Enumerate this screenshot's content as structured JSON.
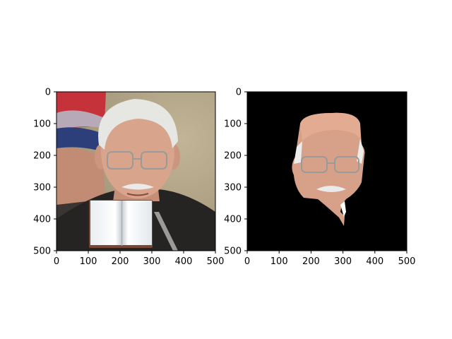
{
  "chart_data": [
    {
      "type": "image",
      "panel": "left",
      "content": "photo of an elderly man with glasses; an open book is pasted over the lower middle",
      "xlim": [
        0,
        500
      ],
      "ylim": [
        500,
        0
      ],
      "xticks": [
        "0",
        "100",
        "200",
        "300",
        "400",
        "500"
      ],
      "yticks": [
        "0",
        "100",
        "200",
        "300",
        "400",
        "500"
      ],
      "occluder": {
        "kind": "open-book",
        "x": [
          105,
          300
        ],
        "y": [
          340,
          490
        ]
      }
    },
    {
      "type": "image",
      "panel": "right",
      "content": "segmentation-masked face region shown over a black background",
      "xlim": [
        0,
        500
      ],
      "ylim": [
        500,
        0
      ],
      "xticks": [
        "0",
        "100",
        "200",
        "300",
        "400",
        "500"
      ],
      "yticks": [
        "0",
        "100",
        "200",
        "300",
        "400",
        "500"
      ],
      "background": "#000000"
    }
  ],
  "colors": {
    "photo_background": "#b7a98a",
    "coat": "#262423",
    "skin": "#d9a48c",
    "hair": "#e6e6e2",
    "mask_background": "#000000"
  }
}
